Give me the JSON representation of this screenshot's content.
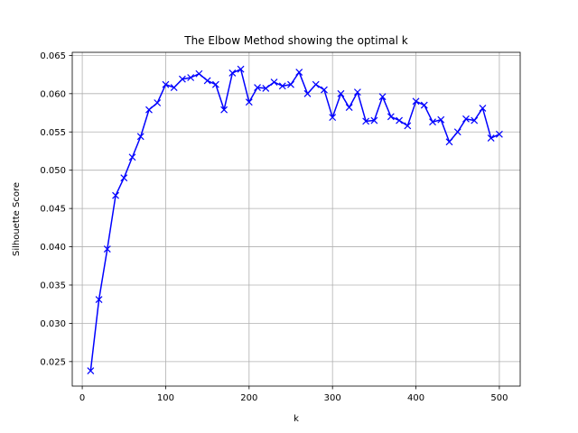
{
  "chart_data": {
    "type": "line",
    "title": "The Elbow Method showing the optimal k",
    "xlabel": "k",
    "ylabel": "Silhouette Score",
    "xlim": [
      -12,
      525
    ],
    "ylim": [
      0.0218,
      0.0654
    ],
    "xticks": [
      0,
      100,
      200,
      300,
      400,
      500
    ],
    "xtick_labels": [
      "0",
      "100",
      "200",
      "300",
      "400",
      "500"
    ],
    "yticks": [
      0.025,
      0.03,
      0.035,
      0.04,
      0.045,
      0.05,
      0.055,
      0.06,
      0.065
    ],
    "ytick_labels": [
      "0.025",
      "0.030",
      "0.035",
      "0.040",
      "0.045",
      "0.050",
      "0.055",
      "0.060",
      "0.065"
    ],
    "grid": true,
    "series": [
      {
        "color": "#0000ff",
        "marker": "x",
        "x": [
          10,
          20,
          30,
          40,
          50,
          60,
          70,
          80,
          90,
          100,
          110,
          120,
          130,
          140,
          150,
          160,
          170,
          180,
          190,
          200,
          210,
          220,
          230,
          240,
          250,
          260,
          270,
          280,
          290,
          300,
          310,
          320,
          330,
          340,
          350,
          360,
          370,
          380,
          390,
          400,
          410,
          420,
          430,
          440,
          450,
          460,
          470,
          480,
          490,
          500
        ],
        "y": [
          0.0238,
          0.0331,
          0.0397,
          0.0467,
          0.049,
          0.0517,
          0.0544,
          0.0579,
          0.0588,
          0.0612,
          0.0608,
          0.0619,
          0.0621,
          0.0626,
          0.0617,
          0.0612,
          0.0579,
          0.0627,
          0.0632,
          0.0589,
          0.0608,
          0.0607,
          0.0615,
          0.061,
          0.0612,
          0.0628,
          0.06,
          0.0612,
          0.0605,
          0.0569,
          0.06,
          0.0582,
          0.0602,
          0.0564,
          0.0565,
          0.0596,
          0.057,
          0.0565,
          0.0558,
          0.059,
          0.0585,
          0.0563,
          0.0566,
          0.0537,
          0.055,
          0.0567,
          0.0565,
          0.0581,
          0.0542,
          0.0547
        ]
      }
    ]
  }
}
